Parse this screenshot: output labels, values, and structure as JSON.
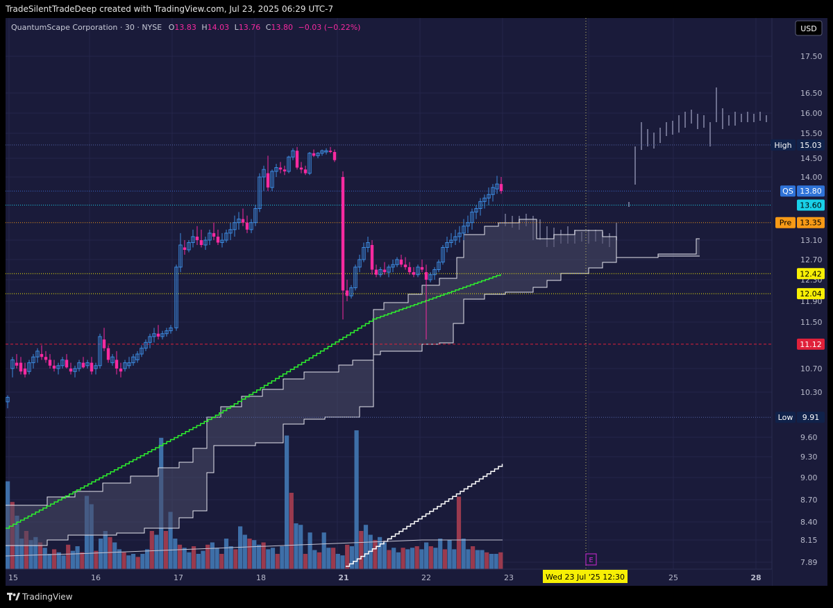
{
  "header_text": "TradeSilentTradeDeep created with TradingView.com, Jul 23, 2025 06:29 UTC-7",
  "footer_brand": "TradingView",
  "currency": "USD",
  "legend": {
    "symbol": "QuantumScape Corporation · 30 · NYSE",
    "o_label": "O",
    "o_val": "13.83",
    "h_label": "H",
    "h_val": "14.03",
    "l_label": "L",
    "l_val": "13.76",
    "c_label": "C",
    "c_val": "13.80",
    "change": "−0.03 (−0.22%)"
  },
  "colors": {
    "background": "#1a1b3a",
    "bull": "#3c8be0",
    "bear": "#f72aa0",
    "vol_up": "#3e6fa8",
    "vol_down": "#9a3a4e",
    "ema": "#2ef02e",
    "hilite": "#f7ef05",
    "red_line": "#e0213a"
  },
  "chart_data": {
    "type": "candlestick",
    "symbol": "QS",
    "interval": "30",
    "exchange": "NYSE",
    "y_ticks": [
      "17.50",
      "16.50",
      "16.00",
      "15.50",
      "14.50",
      "14.00",
      "13.10",
      "12.70",
      "12.30",
      "11.90",
      "11.50",
      "10.70",
      "10.30",
      "9.60",
      "9.30",
      "9.00",
      "8.70",
      "8.40",
      "8.15",
      "7.89"
    ],
    "x_ticks": [
      "15",
      "16",
      "17",
      "18",
      "21",
      "22",
      "23",
      "25",
      "28"
    ],
    "crosshair_label": "Wed 23 Jul '25   12:30",
    "earnings_marker": "E",
    "price_labels": [
      {
        "tag": "High",
        "value": "15.03",
        "bg": "#10224a",
        "fg": "#ffffff"
      },
      {
        "tag": "QS",
        "value": "13.80",
        "bg": "#2f73d8",
        "fg": "#ffffff"
      },
      {
        "tag": "",
        "value": "13.60",
        "bg": "#19d0e8",
        "fg": "#000000"
      },
      {
        "tag": "Pre",
        "value": "13.35",
        "bg": "#f79a16",
        "fg": "#000000"
      },
      {
        "tag": "",
        "value": "12.42",
        "bg": "#f7ef05",
        "fg": "#000000"
      },
      {
        "tag": "",
        "value": "12.04",
        "bg": "#f7ef05",
        "fg": "#000000"
      },
      {
        "tag": "",
        "value": "11.12",
        "bg": "#e0213a",
        "fg": "#ffffff"
      },
      {
        "tag": "Low",
        "value": "9.91",
        "bg": "#10224a",
        "fg": "#ffffff"
      }
    ],
    "high": 15.03,
    "low": 9.91,
    "last": 13.8,
    "premarket": 13.35,
    "levels": {
      "yellow_1": 12.42,
      "yellow_2": 12.04,
      "red": 11.12,
      "cyan": 13.6
    }
  }
}
